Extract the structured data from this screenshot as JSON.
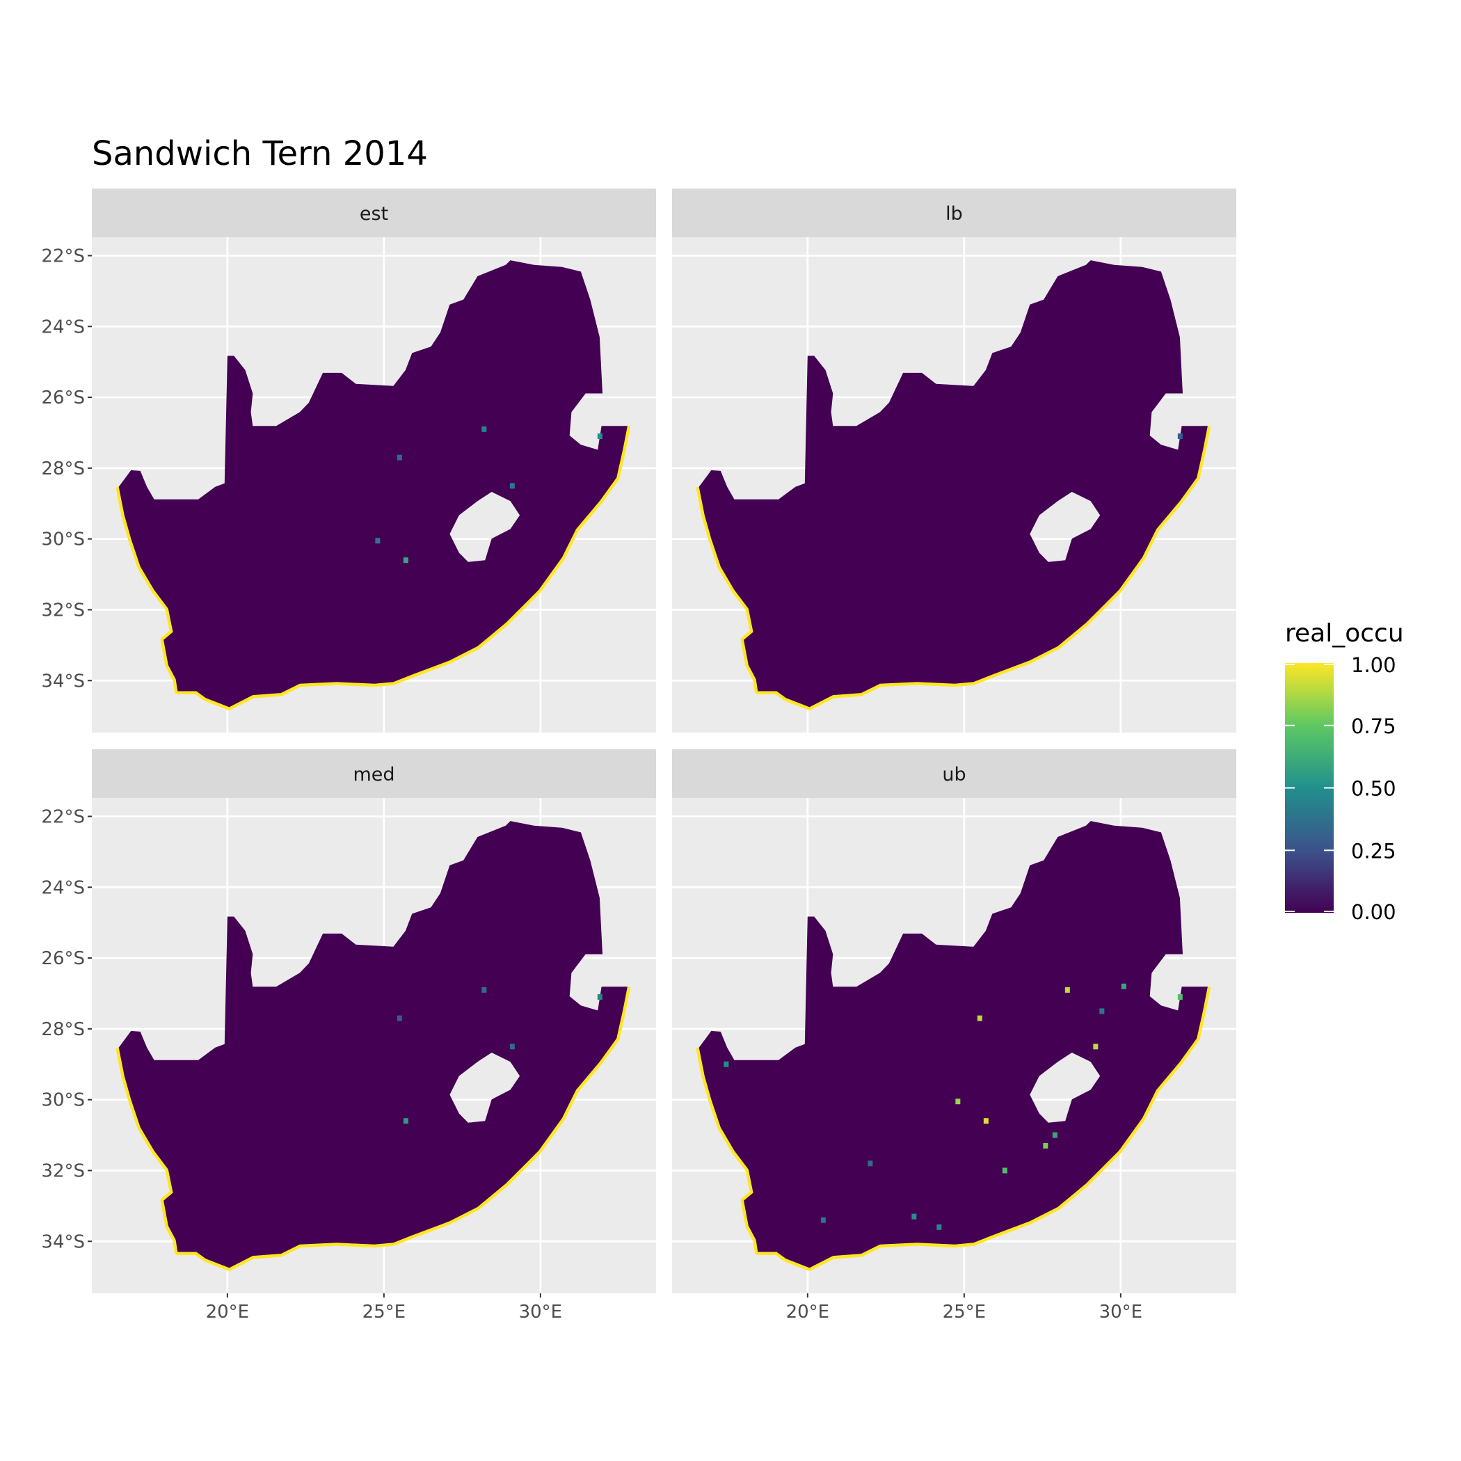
{
  "chart_data": {
    "type": "heatmap",
    "title": "Sandwich Tern 2014",
    "facets": [
      "est",
      "lb",
      "med",
      "ub"
    ],
    "x_ticks": [
      {
        "value": 20,
        "label": "20°E"
      },
      {
        "value": 25,
        "label": "25°E"
      },
      {
        "value": 30,
        "label": "30°E"
      }
    ],
    "y_ticks": [
      {
        "value": -22,
        "label": "22°S"
      },
      {
        "value": -24,
        "label": "24°S"
      },
      {
        "value": -26,
        "label": "26°S"
      },
      {
        "value": -28,
        "label": "28°S"
      },
      {
        "value": -30,
        "label": "30°S"
      },
      {
        "value": -32,
        "label": "32°S"
      },
      {
        "value": -34,
        "label": "34°S"
      }
    ],
    "xlim": [
      15.67,
      33.67
    ],
    "ylim": [
      -35.47,
      -21.48
    ],
    "grid": true,
    "legend": {
      "title": "real_occu",
      "placement": "right",
      "scale": "viridis",
      "range": [
        0,
        1
      ],
      "ticks": [
        {
          "value": 1.0,
          "label": "1.00"
        },
        {
          "value": 0.75,
          "label": "0.75"
        },
        {
          "value": 0.5,
          "label": "0.50"
        },
        {
          "value": 0.25,
          "label": "0.25"
        },
        {
          "value": 0.0,
          "label": "0.00"
        }
      ]
    },
    "background_value": 0.0,
    "coast_value": 1.0,
    "outline_lonlat": [
      [
        16.53,
        -28.53
      ],
      [
        16.92,
        -28.06
      ],
      [
        17.22,
        -28.08
      ],
      [
        17.43,
        -28.53
      ],
      [
        17.66,
        -28.88
      ],
      [
        19.07,
        -28.88
      ],
      [
        19.61,
        -28.53
      ],
      [
        19.91,
        -28.43
      ],
      [
        20.0,
        -24.83
      ],
      [
        20.21,
        -24.83
      ],
      [
        20.57,
        -25.23
      ],
      [
        20.81,
        -25.89
      ],
      [
        20.75,
        -26.42
      ],
      [
        20.81,
        -26.81
      ],
      [
        21.56,
        -26.81
      ],
      [
        22.31,
        -26.42
      ],
      [
        22.6,
        -26.15
      ],
      [
        23.05,
        -25.31
      ],
      [
        23.65,
        -25.31
      ],
      [
        24.1,
        -25.62
      ],
      [
        25.3,
        -25.68
      ],
      [
        25.69,
        -25.23
      ],
      [
        25.9,
        -24.75
      ],
      [
        26.5,
        -24.57
      ],
      [
        26.8,
        -24.17
      ],
      [
        27.1,
        -23.38
      ],
      [
        27.54,
        -23.24
      ],
      [
        27.99,
        -22.58
      ],
      [
        28.89,
        -22.26
      ],
      [
        29.04,
        -22.13
      ],
      [
        29.79,
        -22.26
      ],
      [
        30.69,
        -22.32
      ],
      [
        31.29,
        -22.45
      ],
      [
        31.59,
        -23.24
      ],
      [
        31.89,
        -24.3
      ],
      [
        31.98,
        -25.89
      ],
      [
        31.44,
        -25.89
      ],
      [
        30.99,
        -26.42
      ],
      [
        30.93,
        -27.08
      ],
      [
        31.29,
        -27.34
      ],
      [
        31.83,
        -27.48
      ],
      [
        31.95,
        -26.81
      ],
      [
        32.78,
        -26.81
      ],
      [
        32.63,
        -27.48
      ],
      [
        32.43,
        -28.27
      ],
      [
        31.89,
        -28.93
      ],
      [
        31.14,
        -29.72
      ],
      [
        30.69,
        -30.52
      ],
      [
        29.94,
        -31.44
      ],
      [
        28.89,
        -32.37
      ],
      [
        27.99,
        -33.03
      ],
      [
        27.1,
        -33.43
      ],
      [
        25.9,
        -33.83
      ],
      [
        25.3,
        -34.04
      ],
      [
        24.7,
        -34.09
      ],
      [
        23.5,
        -34.04
      ],
      [
        22.31,
        -34.09
      ],
      [
        21.71,
        -34.35
      ],
      [
        20.81,
        -34.41
      ],
      [
        20.06,
        -34.75
      ],
      [
        19.31,
        -34.49
      ],
      [
        19.01,
        -34.3
      ],
      [
        18.41,
        -34.3
      ],
      [
        18.35,
        -33.96
      ],
      [
        18.11,
        -33.56
      ],
      [
        17.96,
        -32.85
      ],
      [
        18.26,
        -32.63
      ],
      [
        18.11,
        -31.97
      ],
      [
        17.66,
        -31.44
      ],
      [
        17.22,
        -30.78
      ],
      [
        16.92,
        -29.99
      ],
      [
        16.71,
        -29.33
      ]
    ],
    "hole_lonlat": [
      [
        27.1,
        -29.86
      ],
      [
        27.4,
        -29.33
      ],
      [
        27.99,
        -28.93
      ],
      [
        28.44,
        -28.67
      ],
      [
        29.04,
        -28.93
      ],
      [
        29.34,
        -29.33
      ],
      [
        29.04,
        -29.72
      ],
      [
        28.44,
        -29.99
      ],
      [
        28.23,
        -30.6
      ],
      [
        27.69,
        -30.65
      ],
      [
        27.4,
        -30.39
      ]
    ],
    "hotspots": {
      "est": [
        {
          "lon": 28.2,
          "lat": -26.9,
          "v": 0.45
        },
        {
          "lon": 25.7,
          "lat": -30.6,
          "v": 0.6
        },
        {
          "lon": 24.8,
          "lat": -30.05,
          "v": 0.4
        },
        {
          "lon": 25.5,
          "lat": -27.7,
          "v": 0.35
        },
        {
          "lon": 29.1,
          "lat": -28.5,
          "v": 0.4
        },
        {
          "lon": 31.9,
          "lat": -27.1,
          "v": 0.5
        }
      ],
      "lb": [
        {
          "lon": 31.9,
          "lat": -27.1,
          "v": 0.3
        }
      ],
      "med": [
        {
          "lon": 28.2,
          "lat": -26.9,
          "v": 0.35
        },
        {
          "lon": 25.7,
          "lat": -30.6,
          "v": 0.55
        },
        {
          "lon": 25.5,
          "lat": -27.7,
          "v": 0.3
        },
        {
          "lon": 29.1,
          "lat": -28.5,
          "v": 0.35
        },
        {
          "lon": 31.9,
          "lat": -27.1,
          "v": 0.45
        }
      ],
      "ub": [
        {
          "lon": 28.3,
          "lat": -26.9,
          "v": 0.9
        },
        {
          "lon": 25.7,
          "lat": -30.6,
          "v": 0.95
        },
        {
          "lon": 24.8,
          "lat": -30.05,
          "v": 0.85
        },
        {
          "lon": 25.5,
          "lat": -27.7,
          "v": 0.9
        },
        {
          "lon": 29.2,
          "lat": -28.5,
          "v": 0.9
        },
        {
          "lon": 31.9,
          "lat": -27.1,
          "v": 0.7
        },
        {
          "lon": 27.9,
          "lat": -31.0,
          "v": 0.6
        },
        {
          "lon": 27.6,
          "lat": -31.3,
          "v": 0.8
        },
        {
          "lon": 26.3,
          "lat": -32.0,
          "v": 0.7
        },
        {
          "lon": 23.4,
          "lat": -33.3,
          "v": 0.5
        },
        {
          "lon": 17.4,
          "lat": -29.0,
          "v": 0.5
        },
        {
          "lon": 30.1,
          "lat": -26.8,
          "v": 0.6
        },
        {
          "lon": 29.4,
          "lat": -27.5,
          "v": 0.4
        },
        {
          "lon": 22.0,
          "lat": -31.8,
          "v": 0.35
        },
        {
          "lon": 24.2,
          "lat": -33.6,
          "v": 0.45
        },
        {
          "lon": 20.5,
          "lat": -33.4,
          "v": 0.4
        }
      ]
    }
  }
}
